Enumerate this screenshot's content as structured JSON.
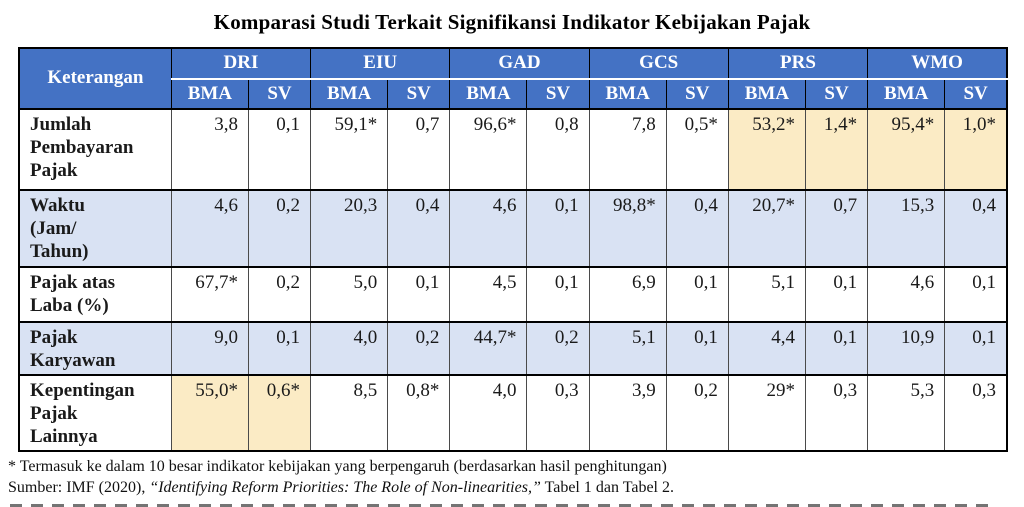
{
  "title": "Komparasi Studi Terkait Signifikansi Indikator Kebijakan Pajak",
  "table": {
    "corner_header": "Keterangan",
    "group_headers": [
      "DRI",
      "EIU",
      "GAD",
      "GCS",
      "PRS",
      "WMO"
    ],
    "sub_headers": [
      "BMA",
      "SV"
    ],
    "rows": [
      {
        "label": "Jumlah\nPembayaran\nPajak",
        "zebra": false,
        "values": [
          "3,8",
          "0,1",
          "59,1*",
          "0,7",
          "96,6*",
          "0,8",
          "7,8",
          "0,5*",
          "53,2*",
          "1,4*",
          "95,4*",
          "1,0*"
        ],
        "highlighted": [
          8,
          9,
          10,
          11
        ]
      },
      {
        "label": "Waktu\n(Jam/\nTahun)",
        "zebra": true,
        "values": [
          "4,6",
          "0,2",
          "20,3",
          "0,4",
          "4,6",
          "0,1",
          "98,8*",
          "0,4",
          "20,7*",
          "0,7",
          "15,3",
          "0,4"
        ],
        "highlighted": []
      },
      {
        "label": "Pajak atas\nLaba (%)",
        "zebra": false,
        "values": [
          "67,7*",
          "0,2",
          "5,0",
          "0,1",
          "4,5",
          "0,1",
          "6,9",
          "0,1",
          "5,1",
          "0,1",
          "4,6",
          "0,1"
        ],
        "highlighted": []
      },
      {
        "label": "Pajak\nKaryawan",
        "zebra": true,
        "values": [
          "9,0",
          "0,1",
          "4,0",
          "0,2",
          "44,7*",
          "0,2",
          "5,1",
          "0,1",
          "4,4",
          "0,1",
          "10,9",
          "0,1"
        ],
        "highlighted": []
      },
      {
        "label": "Kepentingan\nPajak\nLainnya",
        "zebra": false,
        "values": [
          "55,0*",
          "0,6*",
          "8,5",
          "0,8*",
          "4,0",
          "0,3",
          "3,9",
          "0,2",
          "29*",
          "0,3",
          "5,3",
          "0,3"
        ],
        "highlighted": [
          0,
          1
        ]
      }
    ]
  },
  "footnotes": {
    "asterisk_note": "* Termasuk ke dalam 10 besar indikator kebijakan yang berpengaruh (berdasarkan hasil penghitungan)",
    "source_prefix": "Sumber: IMF (2020), ",
    "source_title_italic": "“Identifying Reform Priorities: The Role of Non-linearities,”",
    "source_suffix": " Tabel 1 dan Tabel 2."
  },
  "colors": {
    "header_bg": "#4472C4",
    "header_text": "#FFFFFF",
    "zebra_row_bg": "#D9E2F3",
    "highlight_bg": "#FBEBC5",
    "grid_line": "#4a4a4a",
    "outer_border": "#000000"
  }
}
